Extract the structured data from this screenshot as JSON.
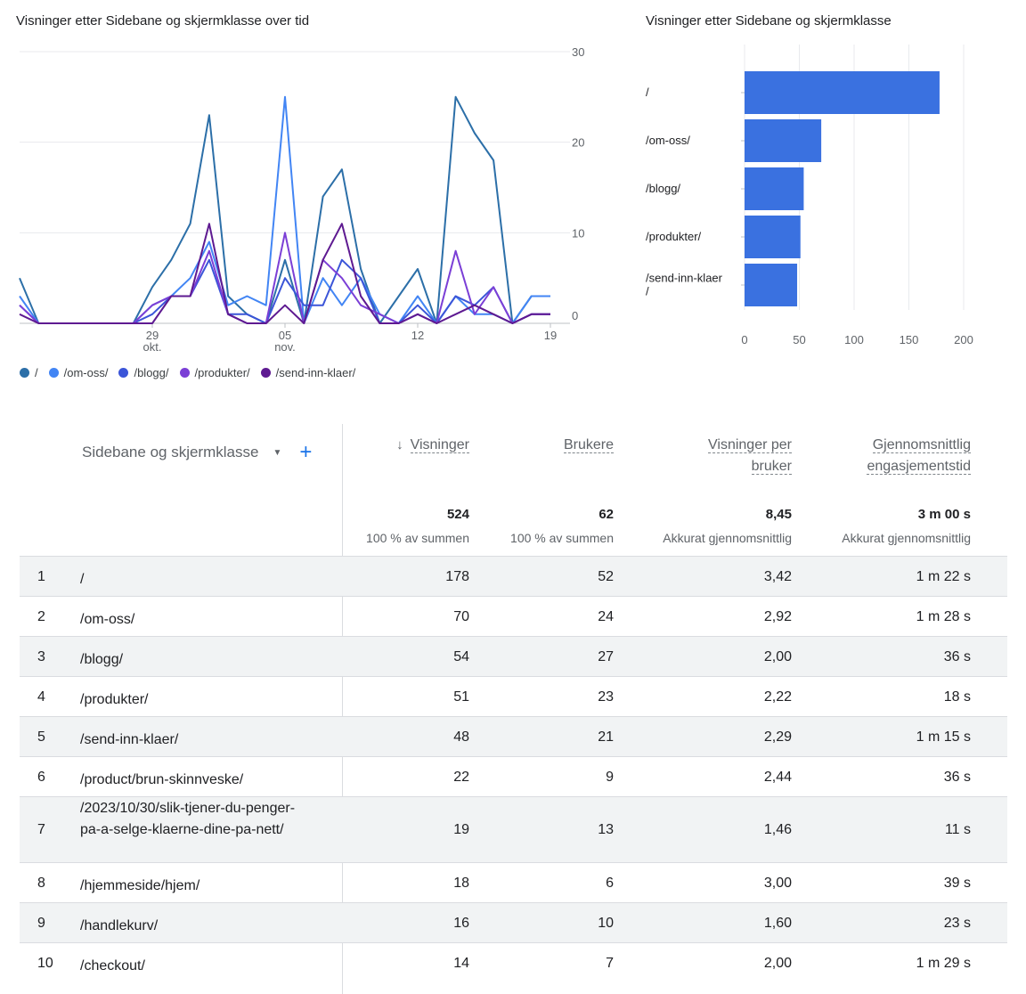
{
  "line_chart": {
    "title": "Visninger etter Sidebane og skjermklasse over tid",
    "y_ticks": [
      "30",
      "20",
      "10",
      "0"
    ],
    "x_ticks": [
      {
        "day": "29",
        "month": "okt."
      },
      {
        "day": "05",
        "month": "nov."
      },
      {
        "day": "12",
        "month": ""
      },
      {
        "day": "19",
        "month": ""
      }
    ]
  },
  "chart_data": [
    {
      "type": "line",
      "title": "Visninger etter Sidebane og skjermklasse over tid",
      "x": [
        "22.10",
        "23.10",
        "24.10",
        "25.10",
        "26.10",
        "27.10",
        "28.10",
        "29.10",
        "30.10",
        "31.10",
        "01.11",
        "02.11",
        "03.11",
        "04.11",
        "05.11",
        "06.11",
        "07.11",
        "08.11",
        "09.11",
        "10.11",
        "11.11",
        "12.11",
        "13.11",
        "14.11",
        "15.11",
        "16.11",
        "17.11",
        "18.11",
        "19.11"
      ],
      "ylim": [
        0,
        30
      ],
      "series": [
        {
          "name": "/",
          "color": "#2c6fa8",
          "values": [
            5,
            0,
            0,
            0,
            0,
            0,
            0,
            4,
            7,
            11,
            23,
            3,
            1,
            0,
            7,
            0,
            14,
            17,
            6,
            0,
            3,
            6,
            0,
            25,
            21,
            18,
            0,
            3,
            3
          ]
        },
        {
          "name": "/om-oss/",
          "color": "#4285f4",
          "values": [
            3,
            0,
            0,
            0,
            0,
            0,
            0,
            2,
            3,
            5,
            9,
            2,
            3,
            2,
            25,
            0,
            5,
            2,
            5,
            1,
            0,
            3,
            0,
            3,
            1,
            1,
            0,
            3,
            3
          ]
        },
        {
          "name": "/blogg/",
          "color": "#3b55d8",
          "values": [
            2,
            0,
            0,
            0,
            0,
            0,
            0,
            1,
            3,
            3,
            7,
            1,
            1,
            0,
            5,
            2,
            2,
            7,
            5,
            0,
            0,
            2,
            0,
            3,
            2,
            4,
            0,
            1,
            1
          ]
        },
        {
          "name": "/produkter/",
          "color": "#7b3fd6",
          "values": [
            2,
            0,
            0,
            0,
            0,
            0,
            0,
            2,
            3,
            3,
            8,
            1,
            0,
            0,
            10,
            0,
            7,
            5,
            2,
            1,
            0,
            1,
            0,
            8,
            1,
            4,
            0,
            1,
            1
          ]
        },
        {
          "name": "/send-inn-klaer/",
          "color": "#5e1a91",
          "values": [
            1,
            0,
            0,
            0,
            0,
            0,
            0,
            0,
            3,
            3,
            11,
            1,
            0,
            0,
            2,
            0,
            7,
            11,
            3,
            0,
            0,
            1,
            0,
            1,
            2,
            1,
            0,
            1,
            1
          ]
        }
      ]
    },
    {
      "type": "bar",
      "orientation": "horizontal",
      "title": "Visninger etter Sidebane og skjermklasse",
      "categories": [
        "/",
        "/om-oss/",
        "/blogg/",
        "/produkter/",
        "/send-inn-klaer\n/"
      ],
      "values": [
        178,
        70,
        54,
        51,
        48
      ],
      "xlim": [
        0,
        200
      ],
      "x_ticks": [
        "0",
        "50",
        "100",
        "150",
        "200"
      ],
      "color": "#3a71e0"
    }
  ],
  "bar_chart": {
    "title": "Visninger etter Sidebane og skjermklasse"
  },
  "table": {
    "dimension_label": "Sidebane og skjermklasse",
    "dropdown_icon": "caret-down-icon",
    "add_icon": "plus-icon",
    "columns": [
      {
        "lines": [
          "Visninger"
        ],
        "sorted": true,
        "sort_icon": "↓"
      },
      {
        "lines": [
          "Brukere"
        ]
      },
      {
        "lines": [
          "Visninger per",
          "bruker"
        ]
      },
      {
        "lines": [
          "Gjennomsnittlig",
          "engasjementstid"
        ]
      }
    ],
    "totals": [
      {
        "value": "524",
        "sub": "100 % av summen"
      },
      {
        "value": "62",
        "sub": "100 % av summen"
      },
      {
        "value": "8,45",
        "sub": "Akkurat gjennomsnittlig"
      },
      {
        "value": "3 m 00 s",
        "sub": "Akkurat gjennomsnittlig"
      }
    ],
    "rows": [
      {
        "idx": "1",
        "page": "/",
        "views": "178",
        "users": "52",
        "vpu": "3,42",
        "eng": "1 m 22 s"
      },
      {
        "idx": "2",
        "page": "/om-oss/",
        "views": "70",
        "users": "24",
        "vpu": "2,92",
        "eng": "1 m 28 s"
      },
      {
        "idx": "3",
        "page": "/blogg/",
        "views": "54",
        "users": "27",
        "vpu": "2,00",
        "eng": "36 s"
      },
      {
        "idx": "4",
        "page": "/produkter/",
        "views": "51",
        "users": "23",
        "vpu": "2,22",
        "eng": "18 s"
      },
      {
        "idx": "5",
        "page": "/send-inn-klaer/",
        "views": "48",
        "users": "21",
        "vpu": "2,29",
        "eng": "1 m 15 s"
      },
      {
        "idx": "6",
        "page": "/product/brun-skinnveske/",
        "views": "22",
        "users": "9",
        "vpu": "2,44",
        "eng": "36 s"
      },
      {
        "idx": "7",
        "page": "/2023/10/30/slik-tjener-du-penger-pa-a-selge-klaerne-dine-pa-nett/",
        "views": "19",
        "users": "13",
        "vpu": "1,46",
        "eng": "11 s"
      },
      {
        "idx": "8",
        "page": "/hjemmeside/hjem/",
        "views": "18",
        "users": "6",
        "vpu": "3,00",
        "eng": "39 s"
      },
      {
        "idx": "9",
        "page": "/handlekurv/",
        "views": "16",
        "users": "10",
        "vpu": "1,60",
        "eng": "23 s"
      },
      {
        "idx": "10",
        "page": "/checkout/",
        "views": "14",
        "users": "7",
        "vpu": "2,00",
        "eng": "1 m 29 s"
      }
    ]
  }
}
